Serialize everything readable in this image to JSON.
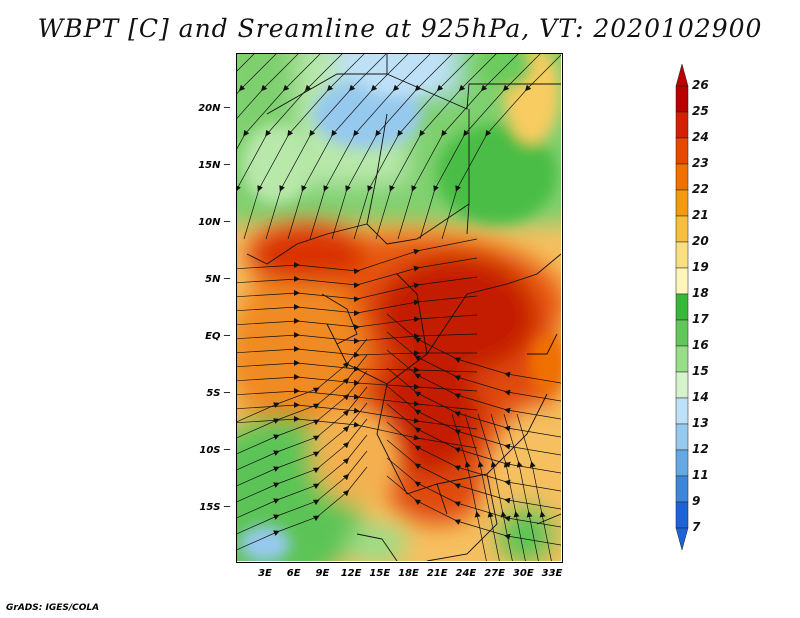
{
  "title": "WBPT [C] and Sreamline at 925hPa, VT: 2020102900",
  "lat_labels": [
    "20N",
    "15N",
    "10N",
    "5N",
    "EQ",
    "5S",
    "10S",
    "15S"
  ],
  "lon_labels": [
    "3E",
    "6E",
    "9E",
    "12E",
    "15E",
    "18E",
    "21E",
    "24E",
    "27E",
    "30E",
    "33E"
  ],
  "colorbar": {
    "variable": "WBPT",
    "unit": "C",
    "levels": [
      "26",
      "25",
      "24",
      "23",
      "22",
      "21",
      "20",
      "19",
      "18",
      "17",
      "16",
      "15",
      "14",
      "13",
      "12",
      "11",
      "9",
      "7"
    ],
    "colors": [
      "#b80000",
      "#d22000",
      "#e64800",
      "#f07000",
      "#f59a10",
      "#f8be40",
      "#fadf80",
      "#fff6bc",
      "#38b838",
      "#60c858",
      "#98de88",
      "#d4f3cc",
      "#bfe1f7",
      "#96c9ee",
      "#64a9e4",
      "#3c87dc",
      "#1c63d8"
    ]
  },
  "credit": "GrADS: IGES/COLA"
}
